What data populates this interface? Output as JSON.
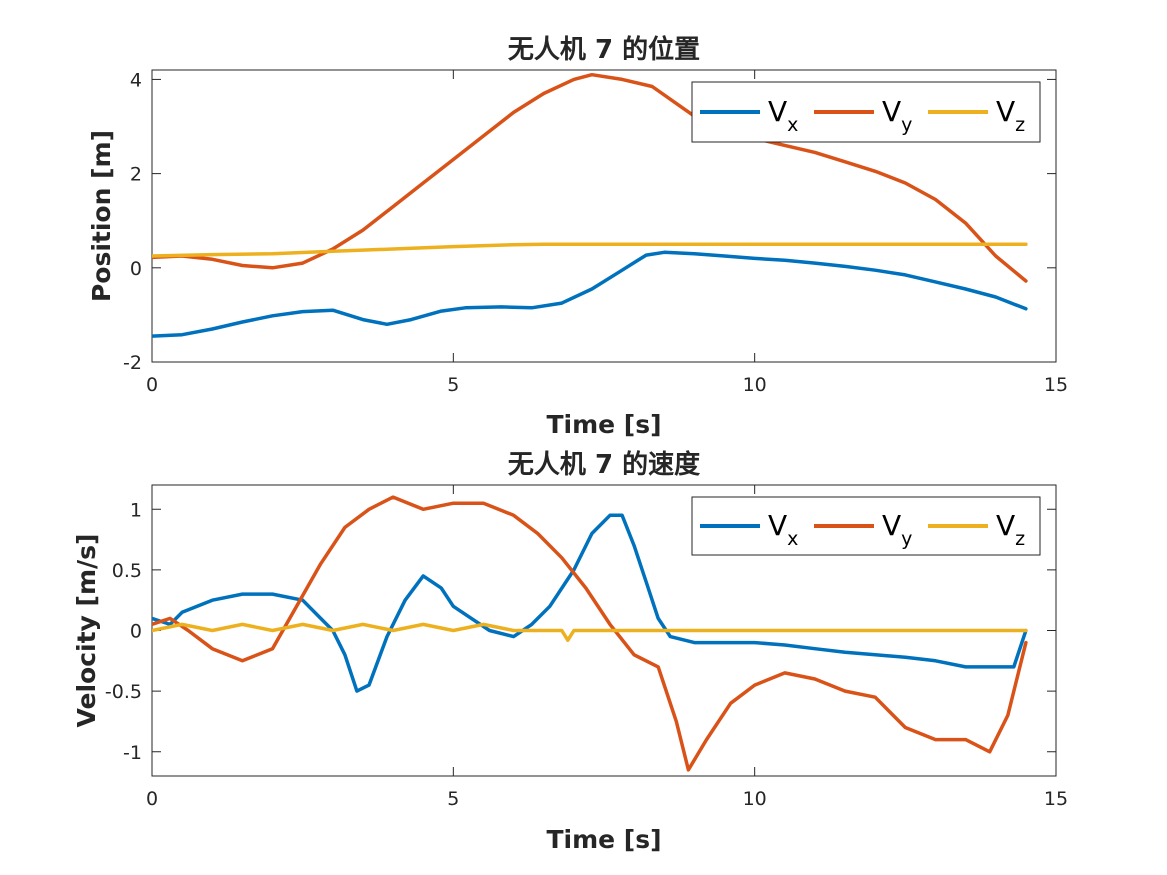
{
  "colors": {
    "vx": "#0072BD",
    "vy": "#D95319",
    "vz": "#EDB120"
  },
  "chart_data": [
    {
      "type": "line",
      "title": "无人机 7 的位置",
      "xlabel": "Time [s]",
      "ylabel": "Position [m]",
      "xlim": [
        0,
        15
      ],
      "ylim": [
        -2,
        4.2
      ],
      "xticks": [
        "0",
        "5",
        "10",
        "15"
      ],
      "yticks": [
        "-2",
        "0",
        "2",
        "4"
      ],
      "legend_location": "top-right",
      "series": [
        {
          "name": "V",
          "sub": "x",
          "color": "#0072BD",
          "x": [
            0,
            0.5,
            1,
            1.5,
            2,
            2.5,
            3,
            3.5,
            3.9,
            4.3,
            4.8,
            5.2,
            5.8,
            6.3,
            6.8,
            7.3,
            7.8,
            8.2,
            8.5,
            9,
            9.5,
            10,
            10.5,
            11,
            11.5,
            12,
            12.5,
            13,
            13.5,
            14,
            14.5
          ],
          "values": [
            -1.45,
            -1.42,
            -1.3,
            -1.15,
            -1.02,
            -0.93,
            -0.9,
            -1.1,
            -1.2,
            -1.1,
            -0.92,
            -0.85,
            -0.83,
            -0.85,
            -0.75,
            -0.45,
            -0.05,
            0.27,
            0.33,
            0.3,
            0.25,
            0.2,
            0.16,
            0.1,
            0.03,
            -0.05,
            -0.15,
            -0.3,
            -0.45,
            -0.62,
            -0.87
          ]
        },
        {
          "name": "V",
          "sub": "y",
          "color": "#D95319",
          "x": [
            0,
            0.5,
            1,
            1.5,
            2,
            2.5,
            3,
            3.5,
            4,
            4.5,
            5,
            5.5,
            6,
            6.5,
            7,
            7.3,
            7.8,
            8.3,
            8.8,
            9.3,
            10,
            10.5,
            11,
            11.5,
            12,
            12.5,
            13,
            13.5,
            14,
            14.5
          ],
          "values": [
            0.22,
            0.25,
            0.18,
            0.05,
            0.0,
            0.1,
            0.4,
            0.8,
            1.3,
            1.8,
            2.3,
            2.8,
            3.3,
            3.7,
            4.0,
            4.1,
            4.0,
            3.85,
            3.4,
            2.95,
            2.75,
            2.6,
            2.45,
            2.25,
            2.05,
            1.8,
            1.45,
            0.95,
            0.25,
            -0.28
          ]
        },
        {
          "name": "V",
          "sub": "z",
          "color": "#EDB120",
          "x": [
            0,
            1,
            2,
            3,
            4,
            5,
            6,
            6.5,
            7,
            8,
            9,
            10,
            11,
            12,
            13,
            14,
            14.5
          ],
          "values": [
            0.25,
            0.28,
            0.3,
            0.35,
            0.4,
            0.45,
            0.49,
            0.5,
            0.5,
            0.5,
            0.5,
            0.5,
            0.5,
            0.5,
            0.5,
            0.5,
            0.5
          ]
        }
      ]
    },
    {
      "type": "line",
      "title": "无人机 7 的速度",
      "xlabel": "Time [s]",
      "ylabel": "Velocity [m/s]",
      "xlim": [
        0,
        15
      ],
      "ylim": [
        -1.2,
        1.2
      ],
      "xticks": [
        "0",
        "5",
        "10",
        "15"
      ],
      "yticks": [
        "-1",
        "-0.5",
        "0",
        "0.5",
        "1"
      ],
      "legend_location": "top-right",
      "series": [
        {
          "name": "V",
          "sub": "x",
          "color": "#0072BD",
          "x": [
            0,
            0.3,
            0.5,
            1,
            1.5,
            2,
            2.5,
            2.8,
            3,
            3.2,
            3.4,
            3.6,
            3.9,
            4.2,
            4.5,
            4.8,
            5,
            5.3,
            5.6,
            6,
            6.3,
            6.6,
            7,
            7.3,
            7.6,
            7.8,
            8,
            8.2,
            8.4,
            8.6,
            9,
            9.5,
            10,
            10.5,
            11,
            11.5,
            12,
            12.5,
            13,
            13.5,
            14,
            14.3,
            14.5
          ],
          "values": [
            0.1,
            0.05,
            0.15,
            0.25,
            0.3,
            0.3,
            0.25,
            0.1,
            0.0,
            -0.2,
            -0.5,
            -0.45,
            -0.05,
            0.25,
            0.45,
            0.35,
            0.2,
            0.1,
            0.0,
            -0.05,
            0.05,
            0.2,
            0.5,
            0.8,
            0.95,
            0.95,
            0.7,
            0.4,
            0.1,
            -0.05,
            -0.1,
            -0.1,
            -0.1,
            -0.12,
            -0.15,
            -0.18,
            -0.2,
            -0.22,
            -0.25,
            -0.3,
            -0.3,
            -0.3,
            0.0
          ]
        },
        {
          "name": "V",
          "sub": "y",
          "color": "#D95319",
          "x": [
            0,
            0.3,
            0.6,
            1,
            1.5,
            2,
            2.4,
            2.8,
            3.2,
            3.6,
            4,
            4.5,
            5,
            5.5,
            6,
            6.4,
            6.8,
            7.2,
            7.6,
            8,
            8.4,
            8.7,
            8.9,
            9.2,
            9.6,
            10,
            10.5,
            11,
            11.5,
            12,
            12.5,
            13,
            13.5,
            13.9,
            14.2,
            14.5
          ],
          "values": [
            0.05,
            0.1,
            0.0,
            -0.15,
            -0.25,
            -0.15,
            0.2,
            0.55,
            0.85,
            1.0,
            1.1,
            1.0,
            1.05,
            1.05,
            0.95,
            0.8,
            0.6,
            0.35,
            0.05,
            -0.2,
            -0.3,
            -0.75,
            -1.15,
            -0.9,
            -0.6,
            -0.45,
            -0.35,
            -0.4,
            -0.5,
            -0.55,
            -0.8,
            -0.9,
            -0.9,
            -1.0,
            -0.7,
            -0.1
          ]
        },
        {
          "name": "V",
          "sub": "z",
          "color": "#EDB120",
          "x": [
            0,
            0.5,
            1,
            1.5,
            2,
            2.5,
            3,
            3.5,
            4,
            4.5,
            5,
            5.5,
            6,
            6.2,
            6.8,
            6.9,
            7,
            8,
            9,
            10,
            11,
            12,
            13,
            14,
            14.5
          ],
          "values": [
            0.0,
            0.05,
            0.0,
            0.05,
            0.0,
            0.05,
            0.0,
            0.05,
            0.0,
            0.05,
            0.0,
            0.05,
            0.0,
            0.0,
            0.0,
            -0.08,
            0.0,
            0.0,
            0.0,
            0.0,
            0.0,
            0.0,
            0.0,
            0.0,
            0.0
          ]
        }
      ]
    }
  ]
}
